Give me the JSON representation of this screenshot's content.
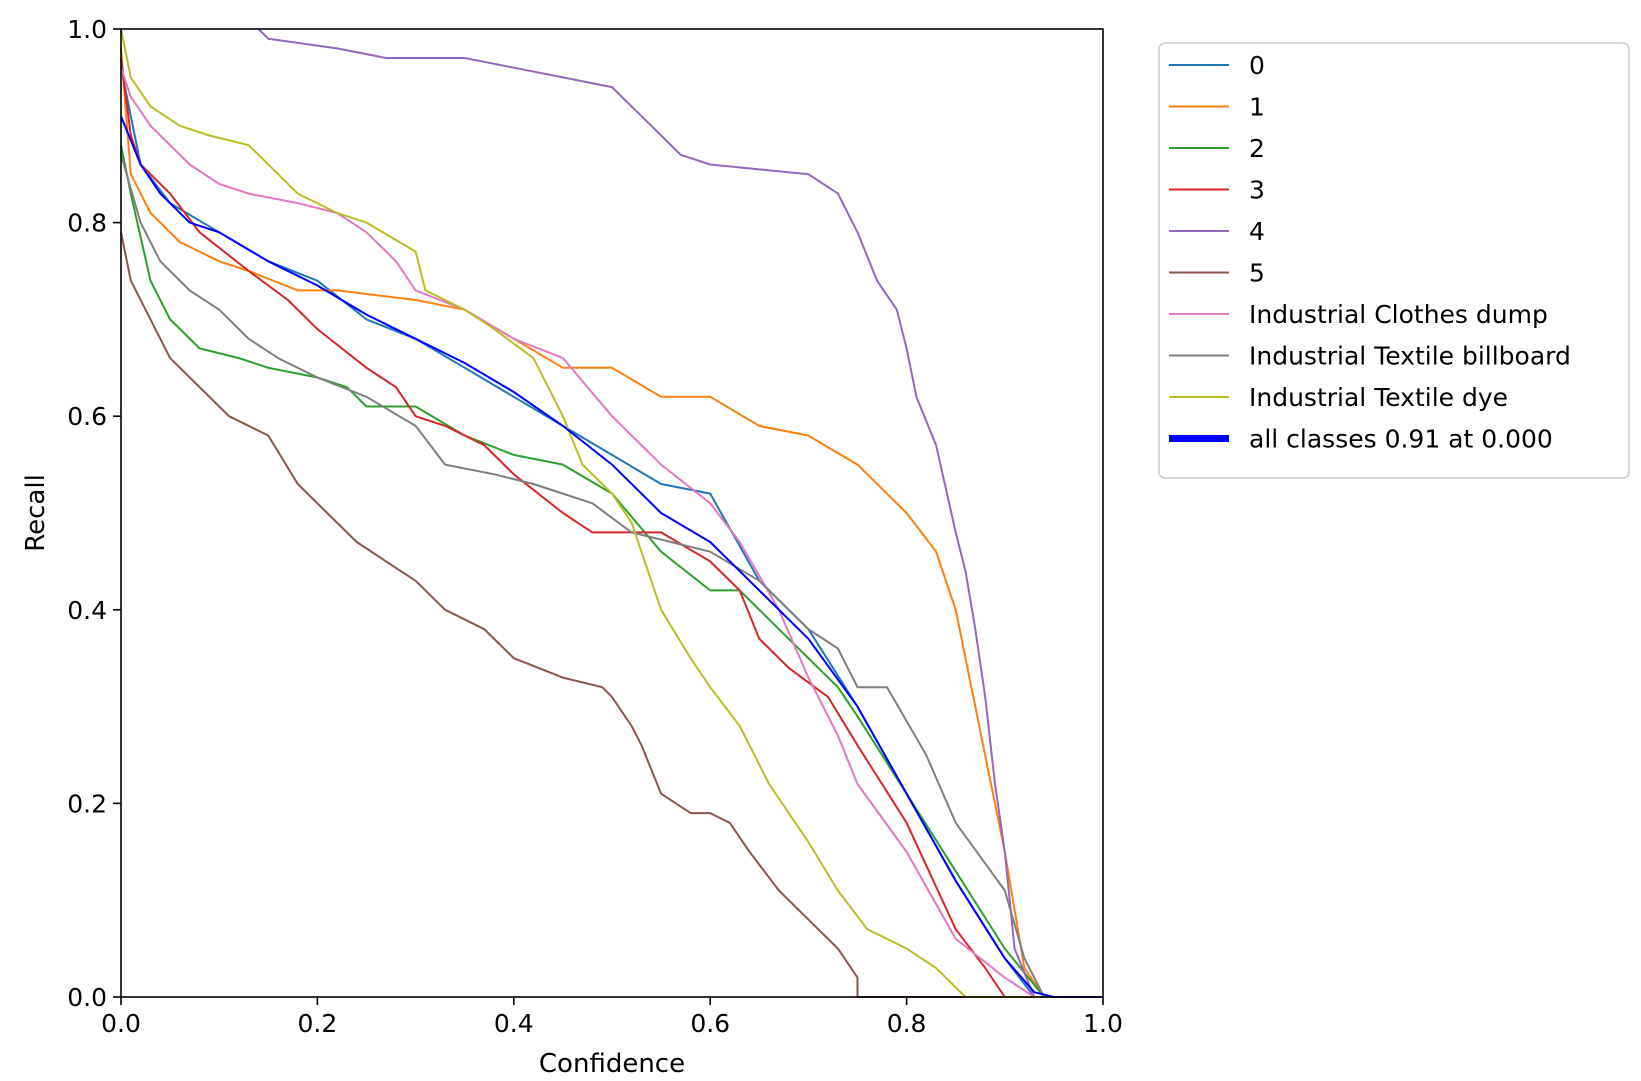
{
  "chart_data": {
    "type": "line",
    "title": "",
    "xlabel": "Confidence",
    "ylabel": "Recall",
    "xlim": [
      0,
      1
    ],
    "ylim": [
      0,
      1
    ],
    "grid": false,
    "legend_position": "outside-top-right",
    "xticks": [
      {
        "value": 0.0,
        "label": "0.0"
      },
      {
        "value": 0.2,
        "label": "0.2"
      },
      {
        "value": 0.4,
        "label": "0.4"
      },
      {
        "value": 0.6,
        "label": "0.6"
      },
      {
        "value": 0.8,
        "label": "0.8"
      },
      {
        "value": 1.0,
        "label": "1.0"
      }
    ],
    "yticks": [
      {
        "value": 0.0,
        "label": "0.0"
      },
      {
        "value": 0.2,
        "label": "0.2"
      },
      {
        "value": 0.4,
        "label": "0.4"
      },
      {
        "value": 0.6,
        "label": "0.6"
      },
      {
        "value": 0.8,
        "label": "0.8"
      },
      {
        "value": 1.0,
        "label": "1.0"
      }
    ],
    "series": [
      {
        "name": "0",
        "color": "#1f77b4",
        "bold": false,
        "points": [
          [
            0,
            0.96
          ],
          [
            0.02,
            0.86
          ],
          [
            0.05,
            0.82
          ],
          [
            0.1,
            0.79
          ],
          [
            0.15,
            0.76
          ],
          [
            0.2,
            0.74
          ],
          [
            0.25,
            0.7
          ],
          [
            0.3,
            0.68
          ],
          [
            0.35,
            0.65
          ],
          [
            0.4,
            0.62
          ],
          [
            0.45,
            0.59
          ],
          [
            0.5,
            0.56
          ],
          [
            0.55,
            0.53
          ],
          [
            0.6,
            0.52
          ],
          [
            0.65,
            0.43
          ],
          [
            0.7,
            0.38
          ],
          [
            0.75,
            0.3
          ],
          [
            0.8,
            0.21
          ],
          [
            0.85,
            0.12
          ],
          [
            0.9,
            0.04
          ],
          [
            0.93,
            0.0
          ],
          [
            1.0,
            0.0
          ]
        ]
      },
      {
        "name": "1",
        "color": "#ff7f0e",
        "bold": false,
        "points": [
          [
            0,
            0.98
          ],
          [
            0.01,
            0.85
          ],
          [
            0.03,
            0.81
          ],
          [
            0.06,
            0.78
          ],
          [
            0.1,
            0.76
          ],
          [
            0.13,
            0.75
          ],
          [
            0.18,
            0.73
          ],
          [
            0.22,
            0.73
          ],
          [
            0.3,
            0.72
          ],
          [
            0.35,
            0.71
          ],
          [
            0.4,
            0.68
          ],
          [
            0.45,
            0.65
          ],
          [
            0.5,
            0.65
          ],
          [
            0.55,
            0.62
          ],
          [
            0.6,
            0.62
          ],
          [
            0.65,
            0.59
          ],
          [
            0.7,
            0.58
          ],
          [
            0.75,
            0.55
          ],
          [
            0.8,
            0.5
          ],
          [
            0.83,
            0.46
          ],
          [
            0.85,
            0.4
          ],
          [
            0.87,
            0.3
          ],
          [
            0.9,
            0.15
          ],
          [
            0.92,
            0.03
          ],
          [
            0.94,
            0.0
          ],
          [
            1.0,
            0.0
          ]
        ]
      },
      {
        "name": "2",
        "color": "#2ca02c",
        "bold": false,
        "points": [
          [
            0,
            0.88
          ],
          [
            0.01,
            0.83
          ],
          [
            0.03,
            0.74
          ],
          [
            0.05,
            0.7
          ],
          [
            0.08,
            0.67
          ],
          [
            0.12,
            0.66
          ],
          [
            0.15,
            0.65
          ],
          [
            0.2,
            0.64
          ],
          [
            0.23,
            0.63
          ],
          [
            0.25,
            0.61
          ],
          [
            0.3,
            0.61
          ],
          [
            0.35,
            0.58
          ],
          [
            0.4,
            0.56
          ],
          [
            0.45,
            0.55
          ],
          [
            0.5,
            0.52
          ],
          [
            0.55,
            0.46
          ],
          [
            0.6,
            0.42
          ],
          [
            0.63,
            0.42
          ],
          [
            0.67,
            0.38
          ],
          [
            0.7,
            0.35
          ],
          [
            0.73,
            0.32
          ],
          [
            0.75,
            0.29
          ],
          [
            0.8,
            0.21
          ],
          [
            0.85,
            0.13
          ],
          [
            0.9,
            0.05
          ],
          [
            0.94,
            0.0
          ],
          [
            1.0,
            0.0
          ]
        ]
      },
      {
        "name": "3",
        "color": "#d62728",
        "bold": false,
        "points": [
          [
            0,
            0.97
          ],
          [
            0.01,
            0.89
          ],
          [
            0.02,
            0.86
          ],
          [
            0.05,
            0.83
          ],
          [
            0.08,
            0.79
          ],
          [
            0.13,
            0.75
          ],
          [
            0.17,
            0.72
          ],
          [
            0.2,
            0.69
          ],
          [
            0.25,
            0.65
          ],
          [
            0.28,
            0.63
          ],
          [
            0.3,
            0.6
          ],
          [
            0.33,
            0.59
          ],
          [
            0.37,
            0.57
          ],
          [
            0.4,
            0.54
          ],
          [
            0.45,
            0.5
          ],
          [
            0.48,
            0.48
          ],
          [
            0.55,
            0.48
          ],
          [
            0.6,
            0.45
          ],
          [
            0.63,
            0.42
          ],
          [
            0.65,
            0.37
          ],
          [
            0.68,
            0.34
          ],
          [
            0.72,
            0.31
          ],
          [
            0.75,
            0.26
          ],
          [
            0.8,
            0.18
          ],
          [
            0.85,
            0.07
          ],
          [
            0.88,
            0.03
          ],
          [
            0.9,
            0.0
          ],
          [
            1.0,
            0.0
          ]
        ]
      },
      {
        "name": "4",
        "color": "#9467bd",
        "bold": false,
        "points": [
          [
            0.14,
            1.0
          ],
          [
            0.15,
            0.99
          ],
          [
            0.22,
            0.98
          ],
          [
            0.27,
            0.97
          ],
          [
            0.35,
            0.97
          ],
          [
            0.4,
            0.96
          ],
          [
            0.45,
            0.95
          ],
          [
            0.5,
            0.94
          ],
          [
            0.54,
            0.9
          ],
          [
            0.57,
            0.87
          ],
          [
            0.6,
            0.86
          ],
          [
            0.7,
            0.85
          ],
          [
            0.73,
            0.83
          ],
          [
            0.75,
            0.79
          ],
          [
            0.77,
            0.74
          ],
          [
            0.79,
            0.71
          ],
          [
            0.8,
            0.67
          ],
          [
            0.81,
            0.62
          ],
          [
            0.83,
            0.57
          ],
          [
            0.85,
            0.48
          ],
          [
            0.86,
            0.44
          ],
          [
            0.87,
            0.38
          ],
          [
            0.88,
            0.31
          ],
          [
            0.89,
            0.22
          ],
          [
            0.9,
            0.15
          ],
          [
            0.91,
            0.05
          ],
          [
            0.93,
            0.0
          ],
          [
            1.0,
            0.0
          ]
        ]
      },
      {
        "name": "5",
        "color": "#8c564b",
        "bold": false,
        "points": [
          [
            0,
            0.79
          ],
          [
            0.01,
            0.74
          ],
          [
            0.03,
            0.7
          ],
          [
            0.05,
            0.66
          ],
          [
            0.08,
            0.63
          ],
          [
            0.11,
            0.6
          ],
          [
            0.15,
            0.58
          ],
          [
            0.18,
            0.53
          ],
          [
            0.21,
            0.5
          ],
          [
            0.24,
            0.47
          ],
          [
            0.27,
            0.45
          ],
          [
            0.3,
            0.43
          ],
          [
            0.33,
            0.4
          ],
          [
            0.37,
            0.38
          ],
          [
            0.4,
            0.35
          ],
          [
            0.45,
            0.33
          ],
          [
            0.49,
            0.32
          ],
          [
            0.5,
            0.31
          ],
          [
            0.52,
            0.28
          ],
          [
            0.53,
            0.26
          ],
          [
            0.55,
            0.21
          ],
          [
            0.58,
            0.19
          ],
          [
            0.6,
            0.19
          ],
          [
            0.62,
            0.18
          ],
          [
            0.64,
            0.15
          ],
          [
            0.67,
            0.11
          ],
          [
            0.7,
            0.08
          ],
          [
            0.73,
            0.05
          ],
          [
            0.75,
            0.02
          ],
          [
            0.75,
            0.0
          ],
          [
            1.0,
            0.0
          ]
        ]
      },
      {
        "name": "Industrial Clothes dump",
        "color": "#e377c2",
        "bold": false,
        "points": [
          [
            0,
            0.96
          ],
          [
            0.01,
            0.93
          ],
          [
            0.03,
            0.9
          ],
          [
            0.05,
            0.88
          ],
          [
            0.07,
            0.86
          ],
          [
            0.1,
            0.84
          ],
          [
            0.13,
            0.83
          ],
          [
            0.18,
            0.82
          ],
          [
            0.22,
            0.81
          ],
          [
            0.25,
            0.79
          ],
          [
            0.28,
            0.76
          ],
          [
            0.3,
            0.73
          ],
          [
            0.35,
            0.71
          ],
          [
            0.4,
            0.68
          ],
          [
            0.45,
            0.66
          ],
          [
            0.5,
            0.6
          ],
          [
            0.55,
            0.55
          ],
          [
            0.6,
            0.51
          ],
          [
            0.63,
            0.47
          ],
          [
            0.67,
            0.4
          ],
          [
            0.7,
            0.33
          ],
          [
            0.73,
            0.27
          ],
          [
            0.75,
            0.22
          ],
          [
            0.8,
            0.15
          ],
          [
            0.85,
            0.06
          ],
          [
            0.9,
            0.02
          ],
          [
            0.93,
            0.0
          ],
          [
            1.0,
            0.0
          ]
        ]
      },
      {
        "name": "Industrial Textile billboard",
        "color": "#7f7f7f",
        "bold": false,
        "points": [
          [
            0,
            0.87
          ],
          [
            0.02,
            0.8
          ],
          [
            0.04,
            0.76
          ],
          [
            0.07,
            0.73
          ],
          [
            0.1,
            0.71
          ],
          [
            0.13,
            0.68
          ],
          [
            0.16,
            0.66
          ],
          [
            0.2,
            0.64
          ],
          [
            0.25,
            0.62
          ],
          [
            0.3,
            0.59
          ],
          [
            0.33,
            0.55
          ],
          [
            0.38,
            0.54
          ],
          [
            0.42,
            0.53
          ],
          [
            0.48,
            0.51
          ],
          [
            0.52,
            0.48
          ],
          [
            0.56,
            0.47
          ],
          [
            0.6,
            0.46
          ],
          [
            0.65,
            0.43
          ],
          [
            0.7,
            0.38
          ],
          [
            0.73,
            0.36
          ],
          [
            0.75,
            0.32
          ],
          [
            0.78,
            0.32
          ],
          [
            0.82,
            0.25
          ],
          [
            0.85,
            0.18
          ],
          [
            0.9,
            0.11
          ],
          [
            0.92,
            0.04
          ],
          [
            0.94,
            0.0
          ],
          [
            1.0,
            0.0
          ]
        ]
      },
      {
        "name": "Industrial Textile dye",
        "color": "#bcbd22",
        "bold": false,
        "points": [
          [
            0,
            1.0
          ],
          [
            0.01,
            0.95
          ],
          [
            0.03,
            0.92
          ],
          [
            0.06,
            0.9
          ],
          [
            0.09,
            0.89
          ],
          [
            0.13,
            0.88
          ],
          [
            0.16,
            0.85
          ],
          [
            0.18,
            0.83
          ],
          [
            0.22,
            0.81
          ],
          [
            0.25,
            0.8
          ],
          [
            0.3,
            0.77
          ],
          [
            0.31,
            0.73
          ],
          [
            0.35,
            0.71
          ],
          [
            0.38,
            0.69
          ],
          [
            0.42,
            0.66
          ],
          [
            0.45,
            0.6
          ],
          [
            0.47,
            0.55
          ],
          [
            0.5,
            0.52
          ],
          [
            0.52,
            0.49
          ],
          [
            0.55,
            0.4
          ],
          [
            0.58,
            0.35
          ],
          [
            0.6,
            0.32
          ],
          [
            0.63,
            0.28
          ],
          [
            0.66,
            0.22
          ],
          [
            0.7,
            0.16
          ],
          [
            0.73,
            0.11
          ],
          [
            0.76,
            0.07
          ],
          [
            0.8,
            0.05
          ],
          [
            0.83,
            0.03
          ],
          [
            0.86,
            0.0
          ],
          [
            1.0,
            0.0
          ]
        ]
      },
      {
        "name": "all classes 0.91 at 0.000",
        "color": "#0000ff",
        "bold": true,
        "points": [
          [
            0,
            0.91
          ],
          [
            0.02,
            0.86
          ],
          [
            0.04,
            0.83
          ],
          [
            0.07,
            0.8
          ],
          [
            0.1,
            0.79
          ],
          [
            0.15,
            0.76
          ],
          [
            0.2,
            0.735
          ],
          [
            0.25,
            0.705
          ],
          [
            0.3,
            0.68
          ],
          [
            0.35,
            0.655
          ],
          [
            0.4,
            0.625
          ],
          [
            0.45,
            0.59
          ],
          [
            0.5,
            0.55
          ],
          [
            0.55,
            0.5
          ],
          [
            0.6,
            0.47
          ],
          [
            0.65,
            0.42
          ],
          [
            0.7,
            0.37
          ],
          [
            0.75,
            0.3
          ],
          [
            0.8,
            0.21
          ],
          [
            0.85,
            0.12
          ],
          [
            0.9,
            0.04
          ],
          [
            0.93,
            0.005
          ],
          [
            0.95,
            0.0
          ],
          [
            1.0,
            0.0
          ]
        ]
      }
    ]
  }
}
